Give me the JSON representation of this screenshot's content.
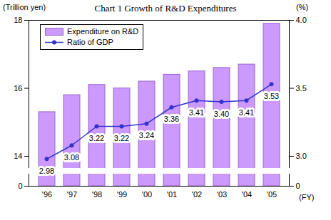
{
  "chart_data": {
    "type": "bar",
    "title": "Chart 1 Growth of R&D Expenditures",
    "categories": [
      "'96",
      "'97",
      "'98",
      "'99",
      "'00",
      "'01",
      "'02",
      "'03",
      "'04",
      "'05"
    ],
    "x_label": "(FY)",
    "y_label": "(Trillion yen)",
    "y2_label": "(%)",
    "ylim": [
      0,
      18
    ],
    "yticks": [
      0,
      14,
      16,
      18
    ],
    "y2lim": [
      0,
      4
    ],
    "y2ticks": [
      0,
      {
        "value": 3,
        "label": "3.0"
      },
      {
        "value": 3.5,
        "label": "3.5"
      },
      {
        "value": 4,
        "label": "4.0"
      }
    ],
    "legend": "top-left",
    "series": [
      {
        "name": "Expenditure on R&D",
        "type": "bar",
        "color": "#cc99ff",
        "values": [
          15.3,
          15.8,
          16.1,
          16.0,
          16.2,
          16.4,
          16.5,
          16.6,
          16.7,
          17.9
        ]
      },
      {
        "name": "Ratio of GDP",
        "type": "line",
        "axis": "y2",
        "color": "#3333cc",
        "marker": "circle",
        "data_labels": true,
        "values": [
          2.98,
          3.08,
          3.22,
          3.22,
          3.24,
          3.36,
          3.41,
          3.4,
          3.41,
          3.53
        ],
        "value_labels": [
          "2.98",
          "3.08",
          "3.22",
          "3.22",
          "3.24",
          "3.36",
          "3.41",
          "3.40",
          "3.41",
          "3.53"
        ]
      }
    ]
  }
}
